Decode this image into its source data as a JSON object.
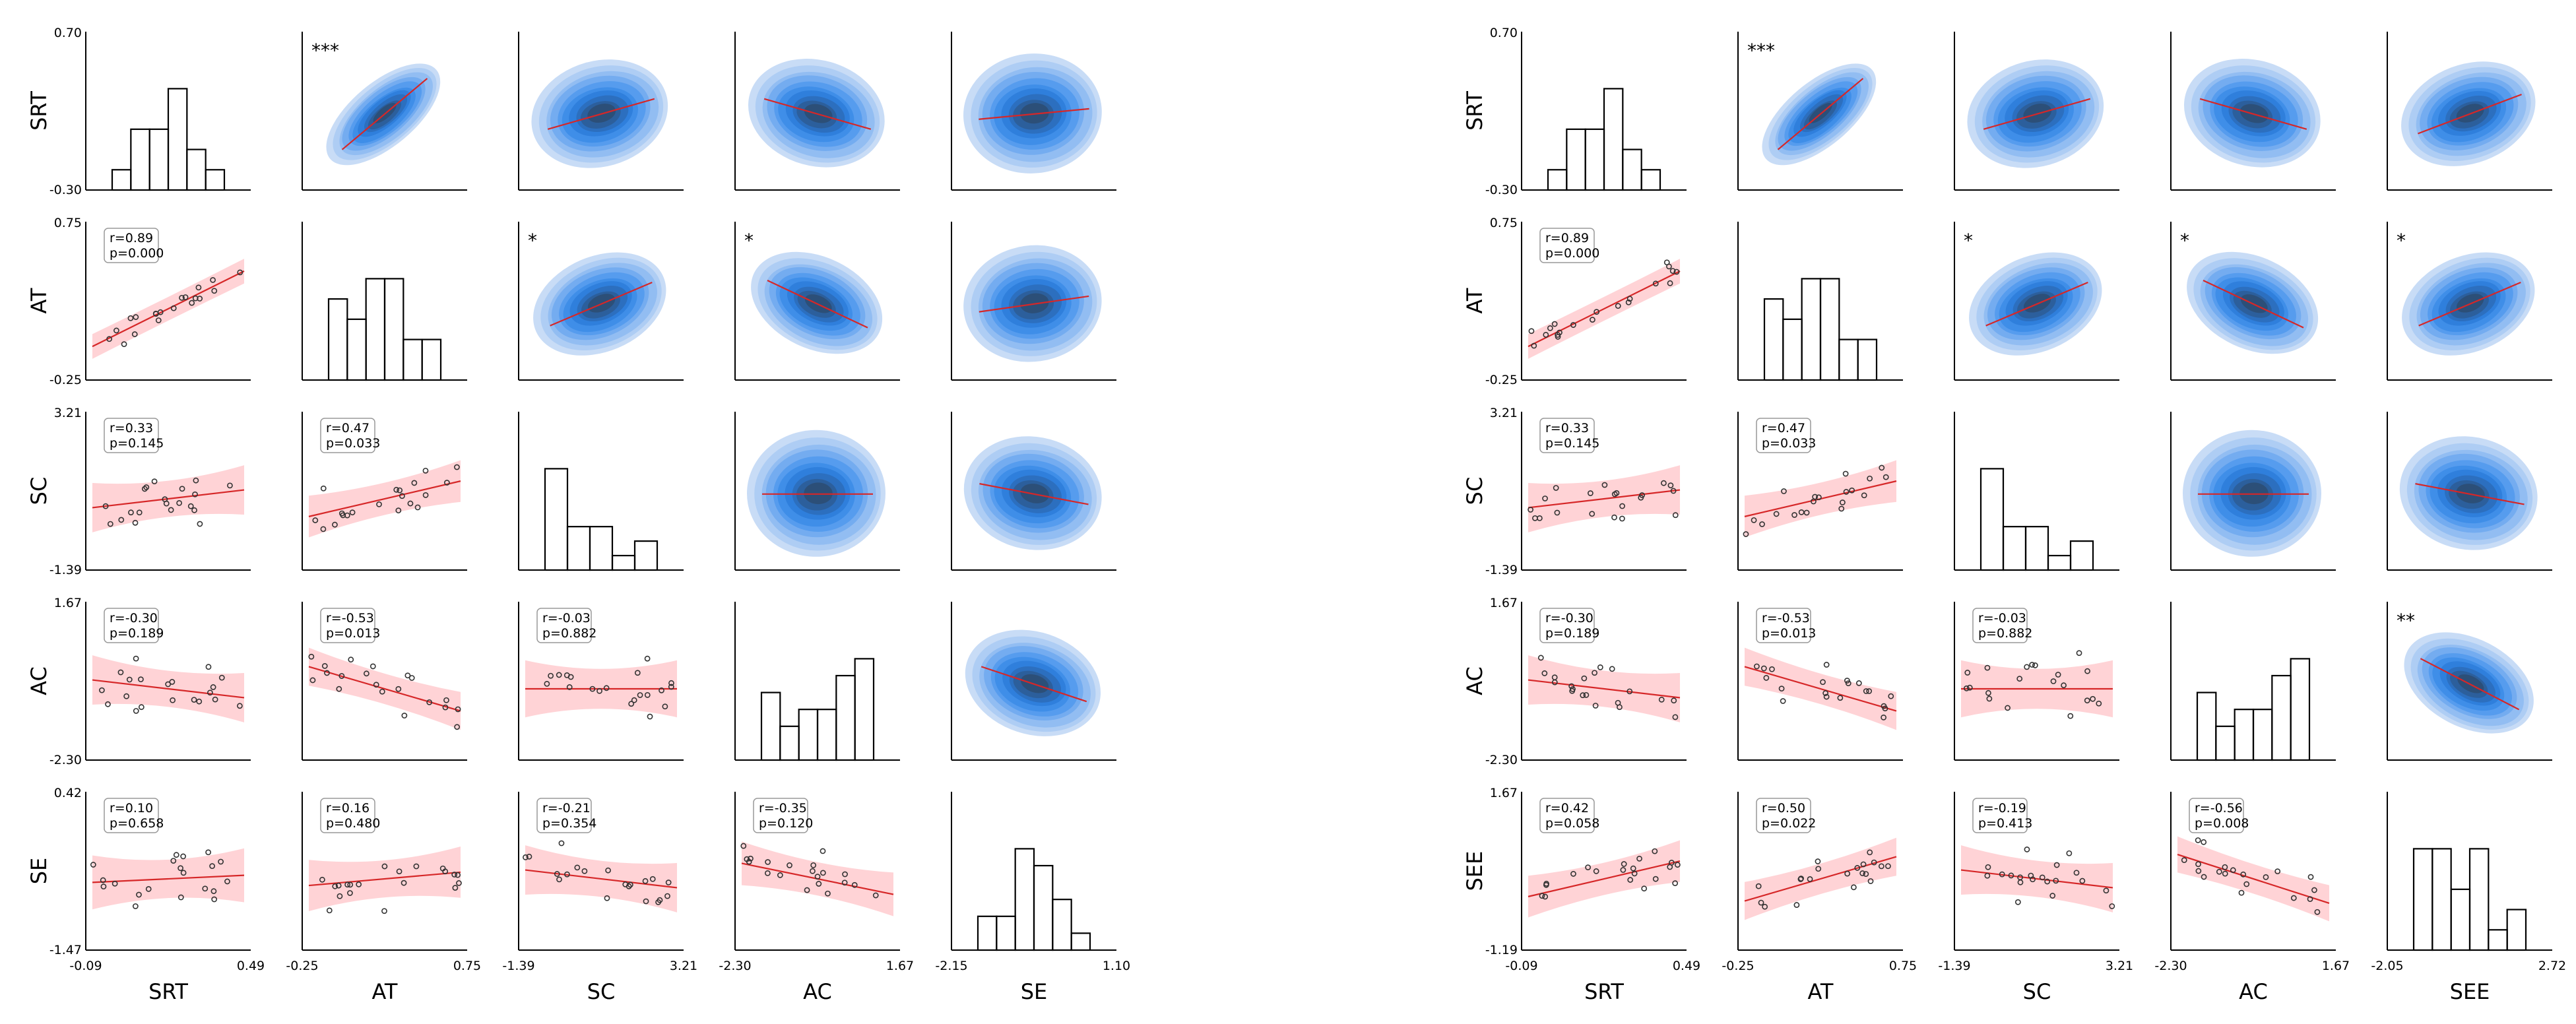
{
  "chart_data": [
    {
      "type": "pairplot",
      "variables": [
        "SRT",
        "AT",
        "SC",
        "AC",
        "SE"
      ],
      "ranges": {
        "SRT": [
          "-0.09",
          "0.49"
        ],
        "AT": [
          "-0.25",
          "0.75"
        ],
        "SC": [
          "-1.39",
          "3.21"
        ],
        "AC": [
          "-2.30",
          "1.67"
        ],
        "SE": [
          "-2.15",
          "1.10"
        ]
      },
      "row_ranges": {
        "SRT": [
          "-0.30",
          "0.70"
        ],
        "AT": [
          "-0.25",
          "0.75"
        ],
        "SC": [
          "-1.39",
          "3.21"
        ],
        "AC": [
          "-2.30",
          "1.67"
        ],
        "SE": [
          "-1.47",
          "0.42"
        ]
      },
      "lower_correlations": [
        {
          "row": "AT",
          "col": "SRT",
          "r": "r=0.89",
          "p": "p=0.000",
          "slope": 0.85
        },
        {
          "row": "SC",
          "col": "SRT",
          "r": "r=0.33",
          "p": "p=0.145",
          "slope": 0.2
        },
        {
          "row": "SC",
          "col": "AT",
          "r": "r=0.47",
          "p": "p=0.033",
          "slope": 0.4
        },
        {
          "row": "AC",
          "col": "SRT",
          "r": "r=-0.30",
          "p": "p=0.189",
          "slope": -0.2
        },
        {
          "row": "AC",
          "col": "AT",
          "r": "r=-0.53",
          "p": "p=0.013",
          "slope": -0.5
        },
        {
          "row": "AC",
          "col": "SC",
          "r": "r=-0.03",
          "p": "p=0.882",
          "slope": 0.0
        },
        {
          "row": "SE",
          "col": "SRT",
          "r": "r=0.10",
          "p": "p=0.658",
          "slope": 0.08
        },
        {
          "row": "SE",
          "col": "AT",
          "r": "r=0.16",
          "p": "p=0.480",
          "slope": 0.15
        },
        {
          "row": "SE",
          "col": "SC",
          "r": "r=-0.21",
          "p": "p=0.354",
          "slope": -0.2
        },
        {
          "row": "SE",
          "col": "AC",
          "r": "r=-0.35",
          "p": "p=0.120",
          "slope": -0.35
        }
      ],
      "upper_significance": [
        {
          "row": "SRT",
          "col": "AT",
          "stars": "***",
          "slope": 0.9
        },
        {
          "row": "AT",
          "col": "SC",
          "stars": "*",
          "slope": 0.45
        },
        {
          "row": "AT",
          "col": "AC",
          "stars": "*",
          "slope": -0.5
        }
      ],
      "upper_slopes": [
        [
          0,
          0.9,
          0.3,
          -0.3,
          0.1
        ],
        [
          0,
          0,
          0.45,
          -0.5,
          0.15
        ],
        [
          0,
          0,
          0,
          0,
          -0.2
        ],
        [
          0,
          0,
          0,
          0,
          -0.35
        ],
        [
          0,
          0,
          0,
          0,
          0
        ]
      ],
      "histograms": {
        "SRT": [
          1,
          3,
          3,
          5,
          2,
          1
        ],
        "AT": [
          4,
          3,
          5,
          5,
          2,
          2
        ],
        "SC": [
          7,
          3,
          3,
          1,
          2
        ],
        "AC": [
          4,
          2,
          3,
          3,
          5,
          6
        ],
        "SE": [
          2,
          2,
          6,
          5,
          3,
          1
        ]
      }
    },
    {
      "type": "pairplot",
      "variables": [
        "SRT",
        "AT",
        "SC",
        "AC",
        "SEE"
      ],
      "ranges": {
        "SRT": [
          "-0.09",
          "0.49"
        ],
        "AT": [
          "-0.25",
          "0.75"
        ],
        "SC": [
          "-1.39",
          "3.21"
        ],
        "AC": [
          "-2.30",
          "1.67"
        ],
        "SEE": [
          "-2.05",
          "2.72"
        ]
      },
      "row_ranges": {
        "SRT": [
          "-0.30",
          "0.70"
        ],
        "AT": [
          "-0.25",
          "0.75"
        ],
        "SC": [
          "-1.39",
          "3.21"
        ],
        "AC": [
          "-2.30",
          "1.67"
        ],
        "SEE": [
          "-1.19",
          "1.67"
        ]
      },
      "lower_correlations": [
        {
          "row": "AT",
          "col": "SRT",
          "r": "r=0.89",
          "p": "p=0.000",
          "slope": 0.85
        },
        {
          "row": "SC",
          "col": "SRT",
          "r": "r=0.33",
          "p": "p=0.145",
          "slope": 0.2
        },
        {
          "row": "SC",
          "col": "AT",
          "r": "r=0.47",
          "p": "p=0.033",
          "slope": 0.4
        },
        {
          "row": "AC",
          "col": "SRT",
          "r": "r=-0.30",
          "p": "p=0.189",
          "slope": -0.2
        },
        {
          "row": "AC",
          "col": "AT",
          "r": "r=-0.53",
          "p": "p=0.013",
          "slope": -0.5
        },
        {
          "row": "AC",
          "col": "SC",
          "r": "r=-0.03",
          "p": "p=0.882",
          "slope": 0.0
        },
        {
          "row": "SEE",
          "col": "SRT",
          "r": "r=0.42",
          "p": "p=0.058",
          "slope": 0.4
        },
        {
          "row": "SEE",
          "col": "AT",
          "r": "r=0.50",
          "p": "p=0.022",
          "slope": 0.5
        },
        {
          "row": "SEE",
          "col": "SC",
          "r": "r=-0.19",
          "p": "p=0.413",
          "slope": -0.2
        },
        {
          "row": "SEE",
          "col": "AC",
          "r": "r=-0.56",
          "p": "p=0.008",
          "slope": -0.55
        }
      ],
      "upper_significance": [
        {
          "row": "SRT",
          "col": "AT",
          "stars": "***",
          "slope": 0.9
        },
        {
          "row": "AT",
          "col": "SC",
          "stars": "*",
          "slope": 0.45
        },
        {
          "row": "AT",
          "col": "AC",
          "stars": "*",
          "slope": -0.5
        },
        {
          "row": "AT",
          "col": "SEE",
          "stars": "*",
          "slope": 0.45
        },
        {
          "row": "AC",
          "col": "SEE",
          "stars": "**",
          "slope": -0.55
        }
      ],
      "upper_slopes": [
        [
          0,
          0.9,
          0.3,
          -0.3,
          0.4
        ],
        [
          0,
          0,
          0.45,
          -0.5,
          0.45
        ],
        [
          0,
          0,
          0,
          0,
          -0.2
        ],
        [
          0,
          0,
          0,
          0,
          -0.55
        ],
        [
          0,
          0,
          0,
          0,
          0
        ]
      ],
      "histograms": {
        "SRT": [
          1,
          3,
          3,
          5,
          2,
          1
        ],
        "AT": [
          4,
          3,
          5,
          5,
          2,
          2
        ],
        "SC": [
          7,
          3,
          3,
          1,
          2
        ],
        "AC": [
          4,
          2,
          3,
          3,
          5,
          6
        ],
        "SEE": [
          5,
          5,
          3,
          5,
          1,
          2
        ]
      }
    }
  ]
}
